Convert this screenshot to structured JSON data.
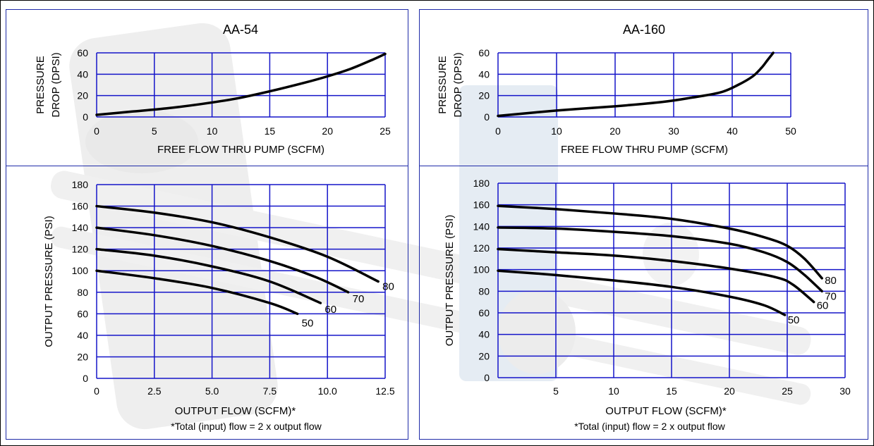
{
  "colors": {
    "grid": "#1515c9",
    "frame": "#1f2ba8",
    "curve": "#000000"
  },
  "left_panel": {
    "title": "AA-54",
    "footnote": "*Total (input) flow = 2 x output flow"
  },
  "right_panel": {
    "title": "AA-160",
    "footnote": "*Total (input) flow = 2 x output flow"
  },
  "chart_data": [
    {
      "id": "aa54-drop",
      "type": "line",
      "title": "AA-54",
      "xlabel": "FREE FLOW THRU PUMP (SCFM)",
      "ylabel": [
        "PRESSURE",
        "DROP (DPSI)"
      ],
      "xlim": [
        0,
        25
      ],
      "ylim": [
        0,
        60
      ],
      "xticks": [
        0,
        5,
        10,
        15,
        20,
        25
      ],
      "yticks": [
        0,
        20,
        40,
        60
      ],
      "xtick_labels": [
        "0",
        "5",
        "10",
        "15",
        "20",
        "25"
      ],
      "ytick_labels": [
        "0",
        "20",
        "40",
        "60"
      ],
      "grid": true,
      "series": [
        {
          "x": [
            0,
            3,
            6,
            9,
            12,
            15,
            18,
            20,
            22,
            24,
            25
          ],
          "y": [
            2,
            5,
            8,
            12,
            17,
            24,
            32,
            38,
            45,
            54,
            59
          ]
        }
      ]
    },
    {
      "id": "aa54-output",
      "type": "line",
      "xlabel": "OUTPUT FLOW (SCFM)*",
      "ylabel": "OUTPUT PRESSURE (PSI)",
      "xlim": [
        0,
        12.5
      ],
      "ylim": [
        0,
        180
      ],
      "xticks": [
        0,
        2.5,
        5,
        7.5,
        10,
        12.5
      ],
      "yticks": [
        0,
        20,
        40,
        60,
        80,
        100,
        120,
        140,
        160,
        180
      ],
      "xtick_labels": [
        "0",
        "2.5",
        "5.0",
        "7.5",
        "10.0",
        "12.5"
      ],
      "ytick_labels": [
        "0",
        "20",
        "40",
        "60",
        "80",
        "100",
        "120",
        "140",
        "160",
        "180"
      ],
      "grid": true,
      "series": [
        {
          "name": "80",
          "x": [
            0,
            2.5,
            5,
            7.5,
            10,
            12.2
          ],
          "y": [
            160,
            154,
            145,
            131,
            113,
            90
          ]
        },
        {
          "name": "70",
          "x": [
            0,
            2.5,
            5,
            7.5,
            9.5,
            10.9
          ],
          "y": [
            140,
            133,
            123,
            109,
            94,
            80
          ]
        },
        {
          "name": "60",
          "x": [
            0,
            2.5,
            5,
            7.5,
            9.7
          ],
          "y": [
            120,
            114,
            104,
            90,
            70
          ]
        },
        {
          "name": "50",
          "x": [
            0,
            2.5,
            5,
            7.5,
            8.7
          ],
          "y": [
            100,
            93,
            84,
            70,
            60
          ]
        }
      ]
    },
    {
      "id": "aa160-drop",
      "type": "line",
      "title": "AA-160",
      "xlabel": "FREE FLOW THRU PUMP (SCFM)",
      "ylabel": [
        "PRESSURE",
        "DROP (DPSI)"
      ],
      "xlim": [
        0,
        50
      ],
      "ylim": [
        0,
        60
      ],
      "xticks": [
        0,
        10,
        20,
        30,
        40,
        50
      ],
      "yticks": [
        0,
        20,
        40,
        60
      ],
      "xtick_labels": [
        "0",
        "10",
        "20",
        "30",
        "40",
        "50"
      ],
      "ytick_labels": [
        "0",
        "20",
        "40",
        "60"
      ],
      "grid": true,
      "series": [
        {
          "x": [
            0,
            10,
            20,
            28,
            33,
            38,
            41,
            43.5,
            45,
            46,
            47
          ],
          "y": [
            1,
            6,
            10,
            14,
            18,
            23,
            30,
            38,
            46,
            53,
            60
          ]
        }
      ]
    },
    {
      "id": "aa160-output",
      "type": "line",
      "xlabel": "OUTPUT FLOW (SCFM)*",
      "ylabel": "OUTPUT PRESSURE (PSI)",
      "xlim": [
        0,
        30
      ],
      "ylim": [
        0,
        180
      ],
      "xticks": [
        5,
        10,
        15,
        20,
        25,
        30
      ],
      "yticks": [
        0,
        20,
        40,
        60,
        80,
        100,
        120,
        140,
        160,
        180
      ],
      "xtick_labels": [
        "5",
        "10",
        "15",
        "20",
        "25",
        "30"
      ],
      "ytick_labels": [
        "0",
        "20",
        "40",
        "60",
        "80",
        "100",
        "120",
        "140",
        "160",
        "180"
      ],
      "grid": true,
      "series": [
        {
          "name": "80",
          "x": [
            0,
            5,
            10,
            15,
            20,
            23,
            25,
            26.5,
            28
          ],
          "y": [
            159,
            156,
            152,
            147,
            138,
            130,
            122,
            110,
            92
          ]
        },
        {
          "name": "70",
          "x": [
            0,
            5,
            10,
            15,
            20,
            23,
            25,
            26.5,
            28
          ],
          "y": [
            139,
            138,
            135,
            131,
            124,
            116,
            107,
            95,
            80
          ]
        },
        {
          "name": "60",
          "x": [
            0,
            5,
            10,
            15,
            20,
            24,
            25.5,
            27.3
          ],
          "y": [
            119,
            116,
            113,
            108,
            101,
            93,
            86,
            70
          ]
        },
        {
          "name": "50",
          "x": [
            0,
            5,
            10,
            15,
            20,
            23,
            24.8
          ],
          "y": [
            99,
            95,
            90,
            84,
            75,
            67,
            58
          ]
        }
      ]
    }
  ]
}
